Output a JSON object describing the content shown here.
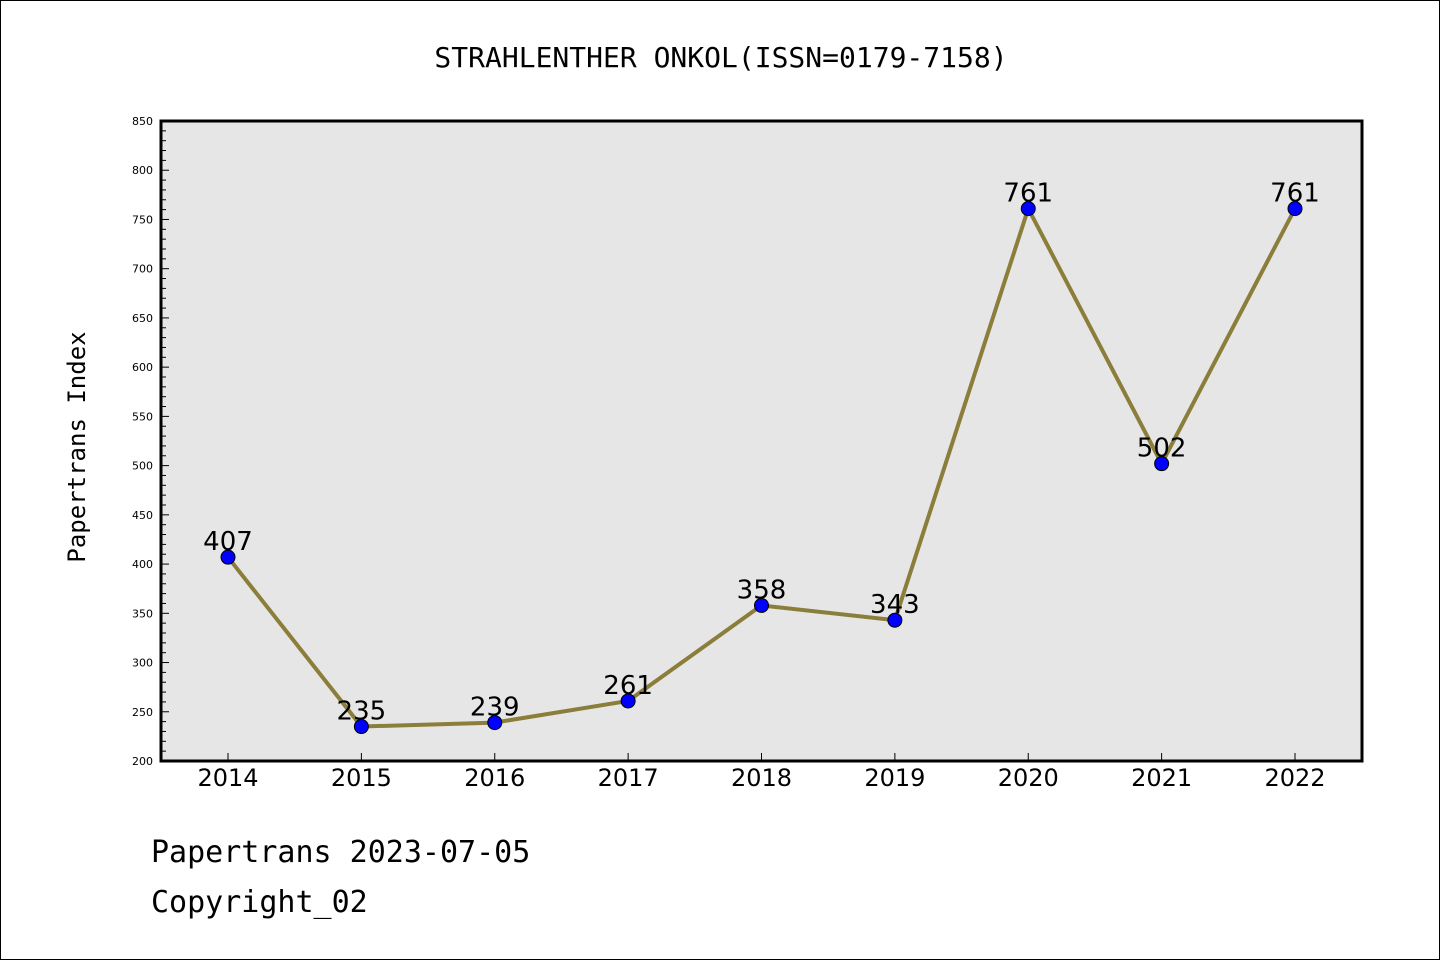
{
  "chart_data": {
    "type": "line",
    "title": "STRAHLENTHER ONKOL(ISSN=0179-7158)",
    "xlabel": "",
    "ylabel": "Papertrans Index",
    "categories": [
      "2014",
      "2015",
      "2016",
      "2017",
      "2018",
      "2019",
      "2020",
      "2021",
      "2022"
    ],
    "series": [
      {
        "values": [
          407,
          235,
          239,
          261,
          358,
          343,
          761,
          502,
          761
        ]
      }
    ],
    "ylim": [
      200,
      850
    ],
    "yticks": [
      200,
      250,
      300,
      350,
      400,
      450,
      500,
      550,
      600,
      650,
      700,
      750,
      800,
      850
    ],
    "grid": false,
    "legend": "none",
    "colors": {
      "line": "#8B7D3A",
      "marker": "#0000FF",
      "plot_background": "#E6E6E6"
    }
  },
  "footer": {
    "date_text": "Papertrans 2023-07-05",
    "copyright_text": "Copyright_02"
  }
}
